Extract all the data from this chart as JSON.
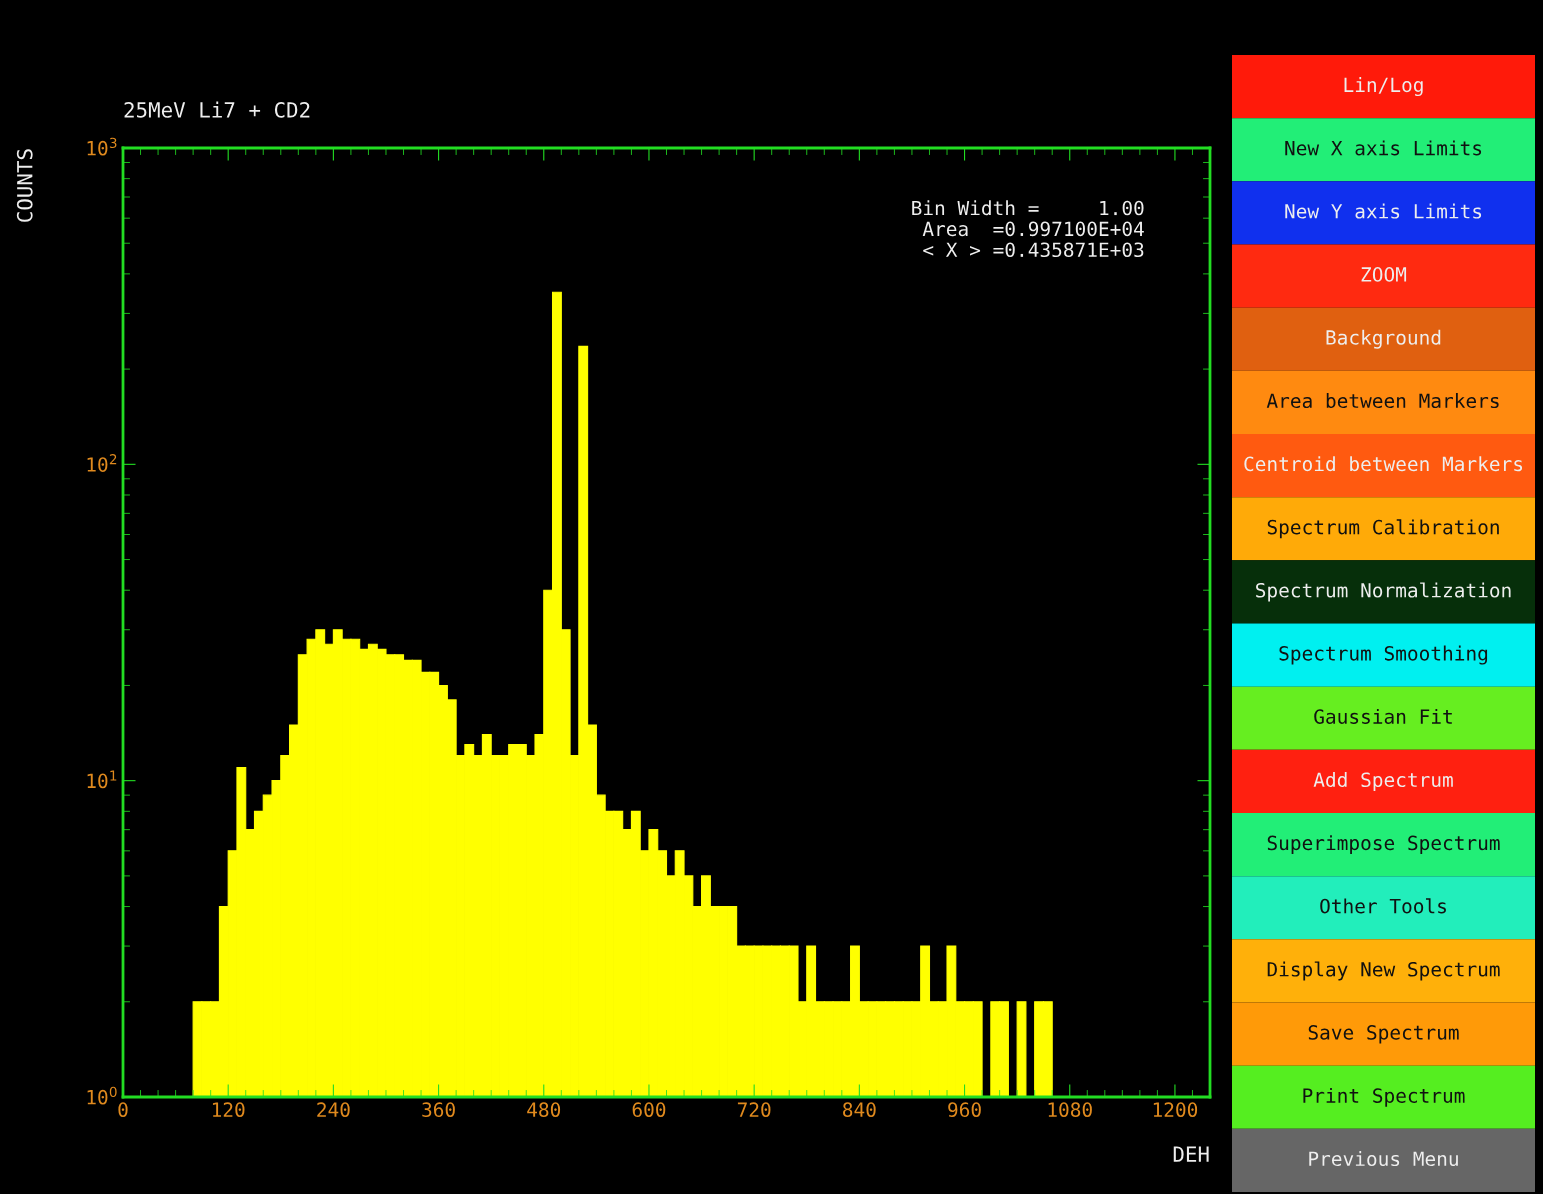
{
  "chart_data": {
    "type": "histogram",
    "title": "25MeV Li7 + CD2",
    "xlabel": "DEH",
    "ylabel": "COUNTS",
    "color": "#ffff00",
    "log": "y",
    "grid": false,
    "bins": [
      80,
      90,
      100,
      110,
      120,
      130,
      140,
      150,
      160,
      170,
      180,
      190,
      200,
      210,
      220,
      230,
      240,
      250,
      260,
      270,
      280,
      290,
      300,
      310,
      320,
      330,
      340,
      350,
      360,
      370,
      380,
      390,
      400,
      410,
      420,
      430,
      440,
      450,
      460,
      470,
      480,
      490,
      500,
      510,
      520,
      530,
      540,
      550,
      560,
      570,
      580,
      590,
      600,
      610,
      620,
      630,
      640,
      650,
      660,
      670,
      680,
      690,
      700,
      710,
      720,
      730,
      740,
      750,
      760,
      770,
      780,
      790,
      800,
      810,
      820,
      830,
      840,
      850,
      860,
      870,
      880,
      890,
      900,
      910,
      920,
      930,
      940,
      950,
      960,
      970,
      980,
      990,
      1000,
      1010,
      1020,
      1030,
      1040,
      1050,
      1060,
      1070,
      1080
    ],
    "values": [
      2,
      2,
      2,
      4,
      6,
      11,
      7,
      8,
      9,
      10,
      12,
      15,
      25,
      28,
      30,
      27,
      30,
      28,
      28,
      26,
      27,
      26,
      25,
      25,
      24,
      24,
      22,
      22,
      20,
      18,
      12,
      13,
      12,
      14,
      12,
      12,
      13,
      13,
      12,
      14,
      40,
      350,
      30,
      12,
      236,
      15,
      9,
      8,
      8,
      7,
      8,
      6,
      7,
      6,
      5,
      6,
      5,
      4,
      5,
      4,
      4,
      4,
      3,
      3,
      3,
      3,
      3,
      3,
      3,
      2,
      3,
      2,
      2,
      2,
      2,
      3,
      2,
      2,
      2,
      2,
      2,
      2,
      2,
      3,
      2,
      2,
      3,
      2,
      2,
      2,
      null,
      2,
      2,
      null,
      2,
      null,
      2,
      2,
      null,
      null
    ],
    "xlim": [
      0,
      1240
    ],
    "ylim": [
      1,
      1000
    ],
    "xticks": [
      0,
      120,
      240,
      360,
      480,
      600,
      720,
      840,
      960,
      1080,
      1200
    ],
    "yticks": [
      {
        "value": 1,
        "label": "10$^{0}$"
      },
      {
        "value": 10,
        "label": "10$^{1}$"
      },
      {
        "value": 100,
        "label": "10$^{2}$"
      },
      {
        "value": 1000,
        "label": "10$^{3}$"
      }
    ],
    "annotations": [
      "Bin Width =     1.00",
      "Area  =0.997100E+04",
      "< X > =0.435871E+03",
      "Lin/Log",
      "New X axis Limits",
      "New Y axis Limits",
      "ZOOM",
      "Background",
      "Area between Markers",
      "Centroid between Markers",
      "Spectrum Calibration",
      "Spectrum Normalization",
      "Spectrum Smoothing",
      "Gaussian Fit",
      "Add Spectrum",
      "Superimpose Spectrum",
      "Other Tools",
      "Display New Spectrum",
      "Save Spectrum",
      "Print Spectrum",
      "Previous Menu"
    ]
  }
}
